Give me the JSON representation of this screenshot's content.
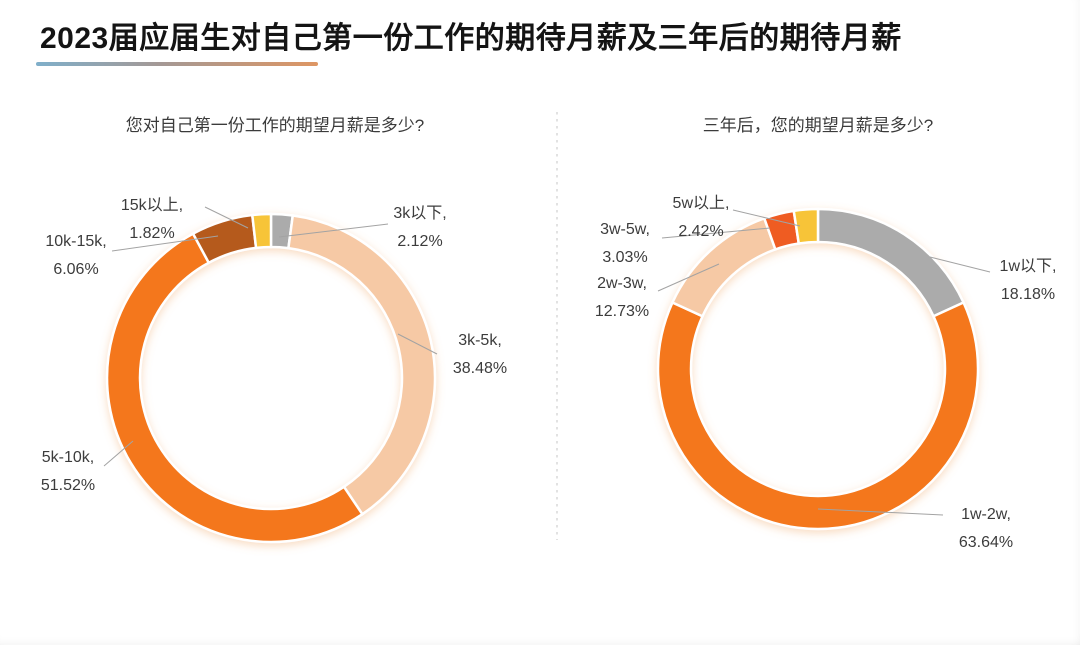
{
  "title": "2023届应届生对自己第一份工作的期待月薪及三年后的期待月薪",
  "accent": {
    "underline_left": "#7FAFCA",
    "underline_right": "#DE9663"
  },
  "chart_data": [
    {
      "type": "donut",
      "title": "您对自己第一份工作的期望月薪是多少?",
      "unit": "%",
      "total": 100,
      "legend_position": "callouts",
      "segments": [
        {
          "label": "3k以下",
          "value": 2.12,
          "color": "#ABABAB",
          "callout_line1": "3k以下,",
          "callout_line2": "2.12%"
        },
        {
          "label": "3k-5k",
          "value": 38.48,
          "color": "#F6C9A5",
          "callout_line1": "3k-5k,",
          "callout_line2": "38.48%"
        },
        {
          "label": "5k-10k",
          "value": 51.52,
          "color": "#F4771B",
          "callout_line1": "5k-10k,",
          "callout_line2": "51.52%"
        },
        {
          "label": "10k-15k",
          "value": 6.06,
          "color": "#B55A1C",
          "callout_line1": "10k-15k,",
          "callout_line2": "6.06%"
        },
        {
          "label": "15k以上",
          "value": 1.82,
          "color": "#F7C437",
          "callout_line1": "15k以上,",
          "callout_line2": "1.82%"
        }
      ]
    },
    {
      "type": "donut",
      "title": "三年后，您的期望月薪是多少?",
      "unit": "%",
      "total": 100,
      "legend_position": "callouts",
      "segments": [
        {
          "label": "1w以下",
          "value": 18.18,
          "color": "#ABABAB",
          "callout_line1": "1w以下,",
          "callout_line2": "18.18%"
        },
        {
          "label": "1w-2w",
          "value": 63.64,
          "color": "#F4771B",
          "callout_line1": "1w-2w,",
          "callout_line2": "63.64%"
        },
        {
          "label": "2w-3w",
          "value": 12.73,
          "color": "#F6C9A5",
          "callout_line1": "2w-3w,",
          "callout_line2": "12.73%"
        },
        {
          "label": "3w-5w",
          "value": 3.03,
          "color": "#EF5B24",
          "callout_line1": "3w-5w,",
          "callout_line2": "3.03%"
        },
        {
          "label": "5w以上",
          "value": 2.42,
          "color": "#F7C437",
          "callout_line1": "5w以上,",
          "callout_line2": "2.42%"
        }
      ]
    }
  ]
}
